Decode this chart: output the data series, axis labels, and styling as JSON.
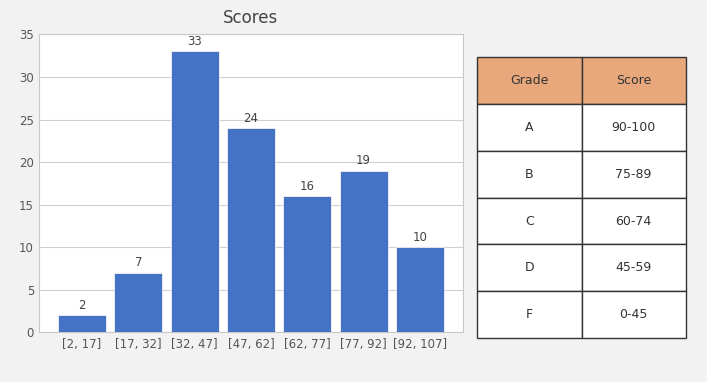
{
  "title": "Scores",
  "categories": [
    "[2, 17]",
    "[17, 32]",
    "[32, 47]",
    "[47, 62]",
    "[62, 77]",
    "[77, 92]",
    "[92, 107]"
  ],
  "values": [
    2,
    7,
    33,
    24,
    16,
    19,
    10
  ],
  "bar_color": "#4472C4",
  "bar_edgecolor": "white",
  "ylim": [
    0,
    35
  ],
  "yticks": [
    0,
    5,
    10,
    15,
    20,
    25,
    30,
    35
  ],
  "title_fontsize": 12,
  "tick_fontsize": 8.5,
  "label_fontsize": 8.5,
  "background_color": "#f2f2f2",
  "chart_bg": "#ffffff",
  "chart_border_color": "#c8c8c8",
  "grid_color": "#d0d0d0",
  "table_header_bg": "#E8A87C",
  "table_header_text": "#333333",
  "table_border_color": "#333333",
  "table_body_text": "#333333",
  "table_grades": [
    "Grade",
    "A",
    "B",
    "C",
    "D",
    "F"
  ],
  "table_scores": [
    "Score",
    "90-100",
    "75-89",
    "60-74",
    "45-59",
    "0-45"
  ],
  "table_fontsize": 9
}
